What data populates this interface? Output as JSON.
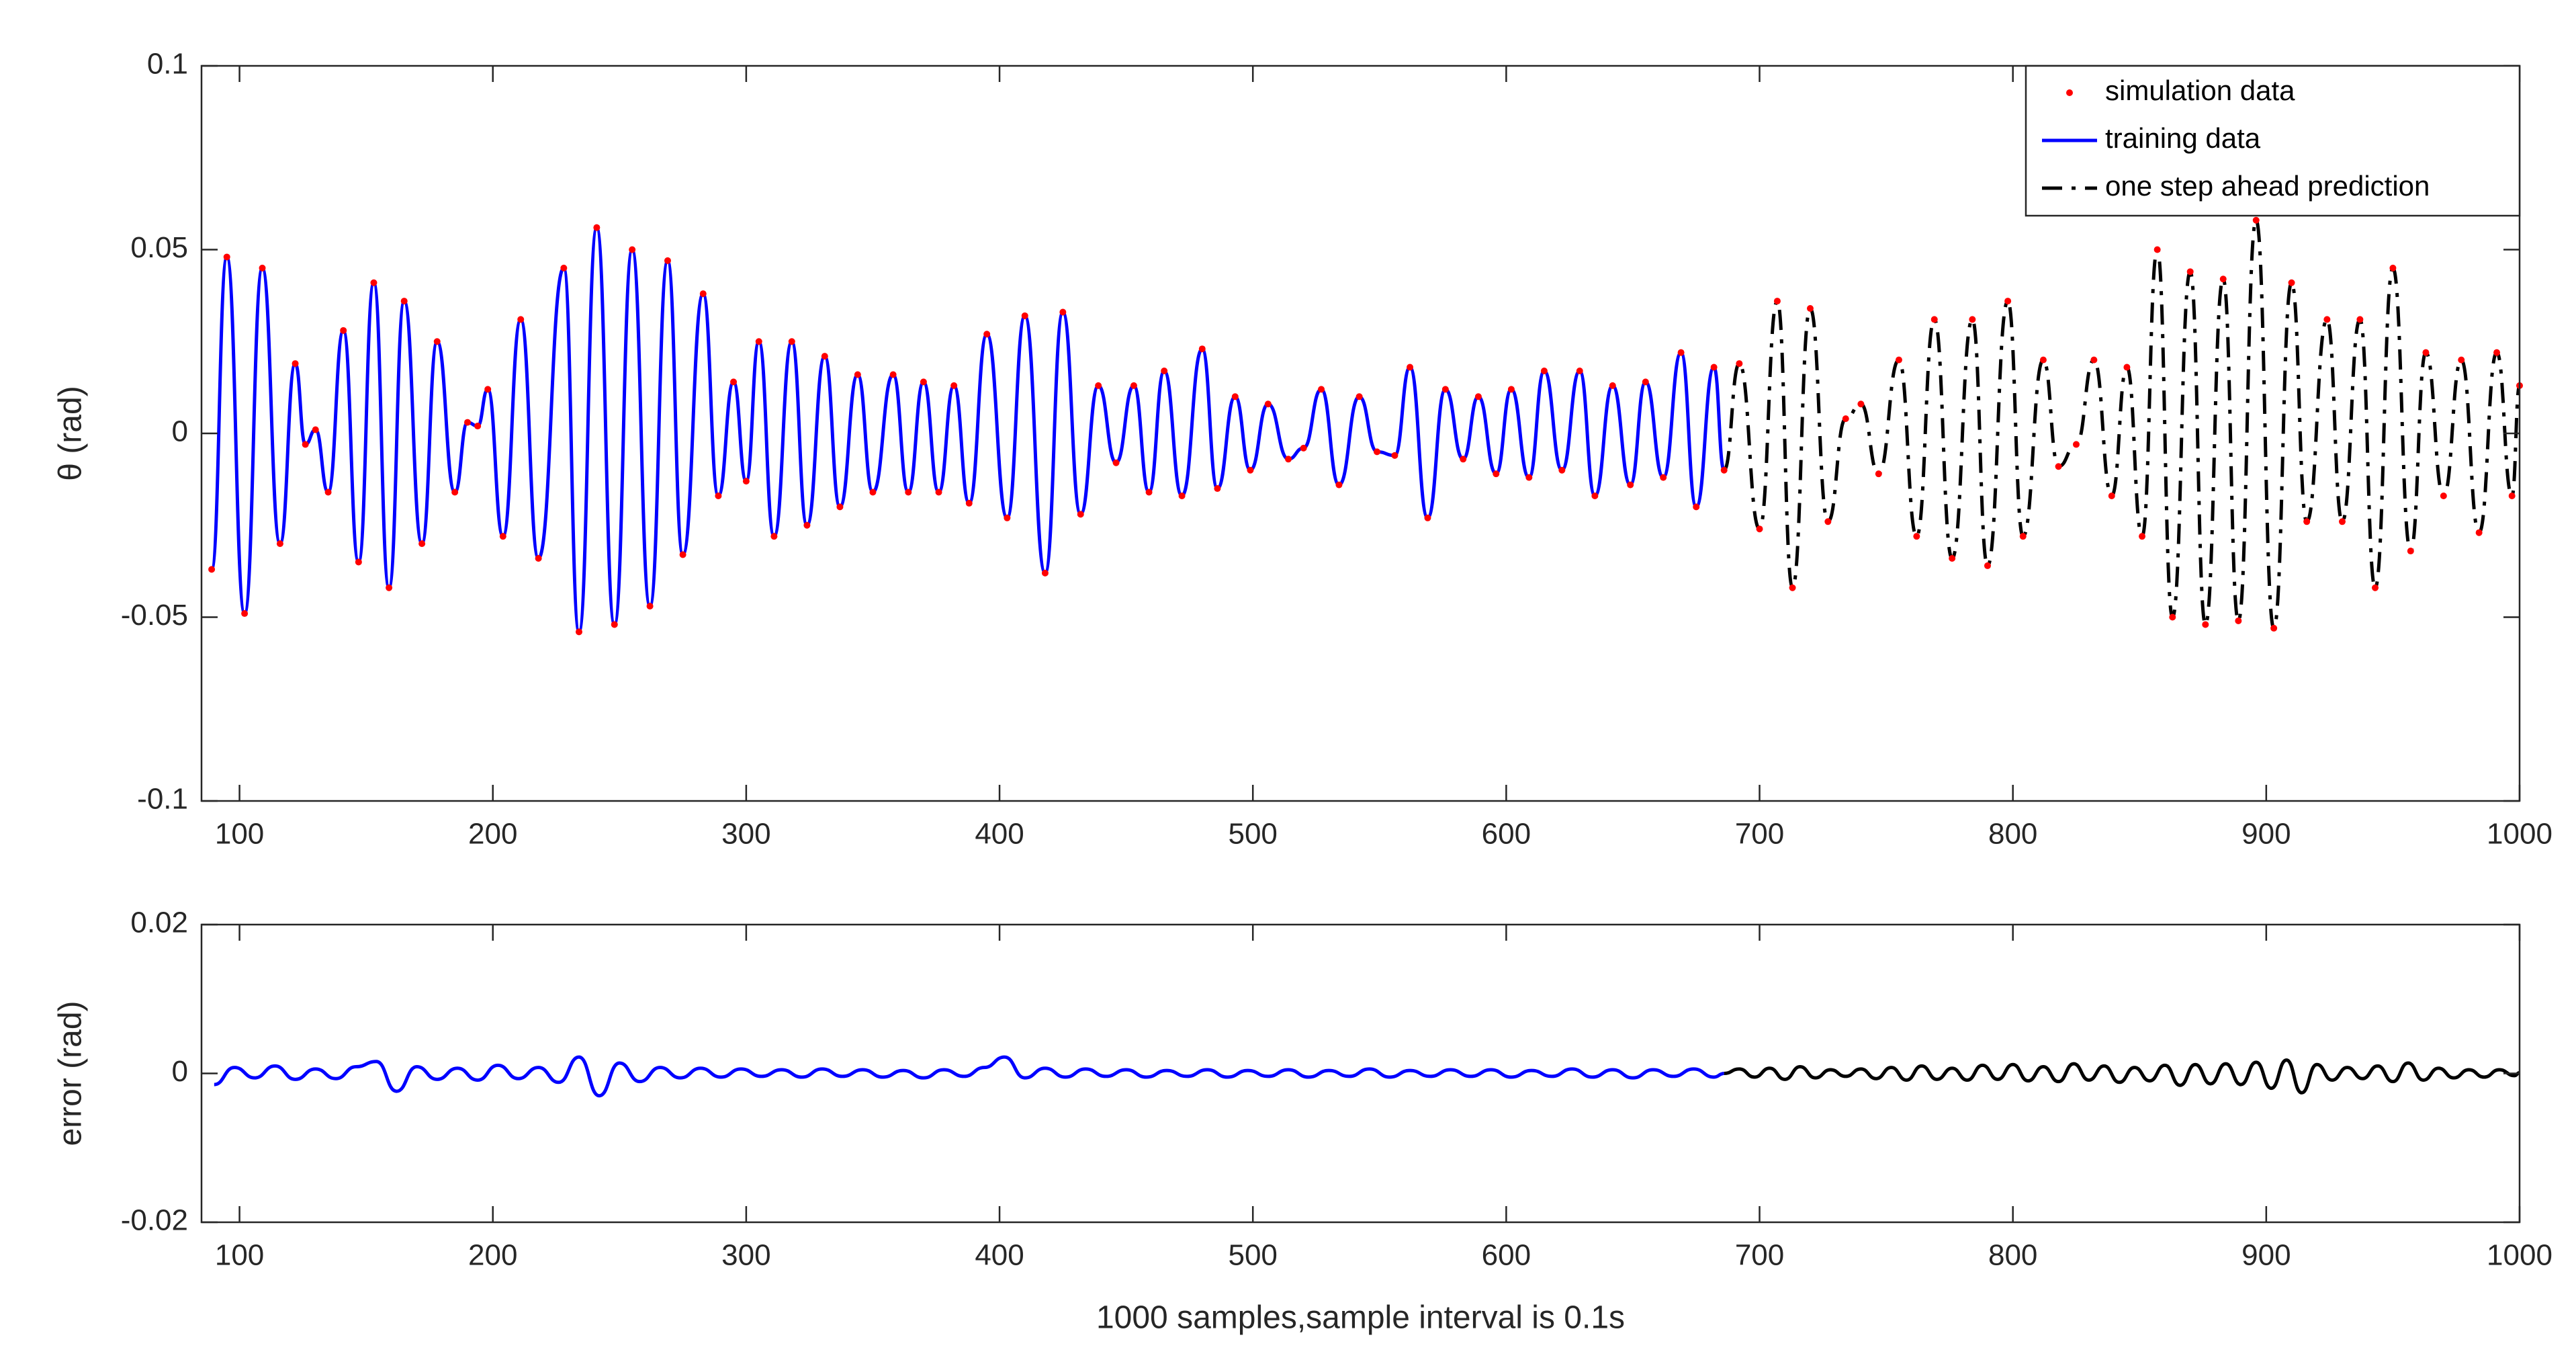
{
  "chart_data": [
    {
      "type": "line",
      "ylabel": "θ (rad)",
      "xlim": [
        85,
        1000
      ],
      "xticks": [
        100,
        200,
        300,
        400,
        500,
        600,
        700,
        800,
        900,
        1000
      ],
      "ylim": [
        -0.1,
        0.1
      ],
      "yticks": [
        -0.1,
        -0.05,
        0,
        0.05,
        0.1
      ],
      "grid": false,
      "legend": "northeast",
      "series": [
        {
          "name": "simulation data",
          "color": "#ff0000",
          "marker": ".",
          "x": [
            89,
            95,
            102,
            109,
            116,
            122,
            126,
            130,
            135,
            141,
            147,
            153,
            159,
            165,
            172,
            178,
            185,
            190,
            194,
            198,
            204,
            211,
            218,
            228,
            234,
            241,
            248,
            255,
            262,
            269,
            275,
            283,
            289,
            295,
            300,
            305,
            311,
            318,
            324,
            331,
            337,
            344,
            350,
            358,
            364,
            370,
            376,
            382,
            388,
            395,
            403,
            410,
            418,
            425,
            432,
            439,
            446,
            453,
            459,
            465,
            472,
            480,
            486,
            493,
            499,
            506,
            514,
            520,
            527,
            534,
            542,
            549,
            556,
            562,
            569,
            576,
            583,
            589,
            596,
            602,
            609,
            615,
            622,
            629,
            635,
            642,
            649,
            655,
            662,
            669,
            675,
            682,
            686,
            692,
            700,
            707,
            713,
            720,
            727,
            734,
            740,
            747,
            755,
            762,
            769,
            776,
            784,
            790,
            798,
            804,
            812,
            818,
            825,
            832,
            839,
            845,
            851,
            857,
            863,
            870,
            876,
            883,
            889,
            896,
            903,
            910,
            916,
            924,
            930,
            937,
            943,
            950,
            957,
            963,
            970,
            977,
            984,
            991,
            997,
            1000
          ],
          "values": [
            -0.037,
            0.048,
            -0.049,
            0.045,
            -0.03,
            0.019,
            -0.003,
            0.001,
            -0.016,
            0.028,
            -0.035,
            0.041,
            -0.042,
            0.036,
            -0.03,
            0.025,
            -0.016,
            0.003,
            0.002,
            0.012,
            -0.028,
            0.031,
            -0.034,
            0.045,
            -0.054,
            0.056,
            -0.052,
            0.05,
            -0.047,
            0.047,
            -0.033,
            0.038,
            -0.017,
            0.014,
            -0.013,
            0.025,
            -0.028,
            0.025,
            -0.025,
            0.021,
            -0.02,
            0.016,
            -0.016,
            0.016,
            -0.016,
            0.014,
            -0.016,
            0.013,
            -0.019,
            0.027,
            -0.023,
            0.032,
            -0.038,
            0.033,
            -0.022,
            0.013,
            -0.008,
            0.013,
            -0.016,
            0.017,
            -0.017,
            0.023,
            -0.015,
            0.01,
            -0.01,
            0.008,
            -0.007,
            -0.004,
            0.012,
            -0.014,
            0.01,
            -0.005,
            -0.006,
            0.018,
            -0.023,
            0.012,
            -0.007,
            0.01,
            -0.011,
            0.012,
            -0.012,
            0.017,
            -0.01,
            0.017,
            -0.017,
            0.013,
            -0.014,
            0.014,
            -0.012,
            0.022,
            -0.02,
            0.018,
            -0.01,
            0.019,
            -0.026,
            0.036,
            -0.042,
            0.034,
            -0.024,
            0.004,
            0.008,
            -0.011,
            0.02,
            -0.028,
            0.031,
            -0.034,
            0.031,
            -0.036,
            0.036,
            -0.028,
            0.02,
            -0.009,
            -0.003,
            0.02,
            -0.017,
            0.018,
            -0.028,
            0.05,
            -0.05,
            0.044,
            -0.052,
            0.042,
            -0.051,
            0.058,
            -0.053,
            0.041,
            -0.024,
            0.031,
            -0.024,
            0.031,
            -0.042,
            0.045,
            -0.032,
            0.022,
            -0.017,
            0.02,
            -0.027,
            0.022,
            -0.017,
            0.013
          ]
        },
        {
          "name": "training data",
          "color": "#0000ff",
          "linestyle": "-",
          "x": [
            89,
            95,
            102,
            109,
            116,
            122,
            126,
            130,
            135,
            141,
            147,
            153,
            159,
            165,
            172,
            178,
            185,
            190,
            194,
            198,
            204,
            211,
            218,
            228,
            234,
            241,
            248,
            255,
            262,
            269,
            275,
            283,
            289,
            295,
            300,
            305,
            311,
            318,
            324,
            331,
            337,
            344,
            350,
            358,
            364,
            370,
            376,
            382,
            388,
            395,
            403,
            410,
            418,
            425,
            432,
            439,
            446,
            453,
            459,
            465,
            472,
            480,
            486,
            493,
            499,
            506,
            514,
            520,
            527,
            534,
            542,
            549,
            556,
            562,
            569,
            576,
            583,
            589,
            596,
            602,
            609,
            615,
            622,
            629,
            635,
            642,
            649,
            655,
            662,
            669,
            675,
            682,
            686
          ],
          "values": [
            -0.037,
            0.048,
            -0.049,
            0.045,
            -0.03,
            0.019,
            -0.003,
            0.001,
            -0.016,
            0.028,
            -0.035,
            0.041,
            -0.042,
            0.036,
            -0.03,
            0.025,
            -0.016,
            0.003,
            0.002,
            0.012,
            -0.028,
            0.031,
            -0.034,
            0.045,
            -0.054,
            0.056,
            -0.052,
            0.05,
            -0.047,
            0.047,
            -0.033,
            0.038,
            -0.017,
            0.014,
            -0.013,
            0.025,
            -0.028,
            0.025,
            -0.025,
            0.021,
            -0.02,
            0.016,
            -0.016,
            0.016,
            -0.016,
            0.014,
            -0.016,
            0.013,
            -0.019,
            0.027,
            -0.023,
            0.032,
            -0.038,
            0.033,
            -0.022,
            0.013,
            -0.008,
            0.013,
            -0.016,
            0.017,
            -0.017,
            0.023,
            -0.015,
            0.01,
            -0.01,
            0.008,
            -0.007,
            -0.004,
            0.012,
            -0.014,
            0.01,
            -0.005,
            -0.006,
            0.018,
            -0.023,
            0.012,
            -0.007,
            0.01,
            -0.011,
            0.012,
            -0.012,
            0.017,
            -0.01,
            0.017,
            -0.017,
            0.013,
            -0.014,
            0.014,
            -0.012,
            0.022,
            -0.02,
            0.018,
            -0.01
          ]
        },
        {
          "name": "one step ahead prediction",
          "color": "#000000",
          "linestyle": "-.",
          "x": [
            686,
            692,
            700,
            707,
            713,
            720,
            727,
            734,
            740,
            747,
            755,
            762,
            769,
            776,
            784,
            790,
            798,
            804,
            812,
            818,
            825,
            832,
            839,
            845,
            851,
            857,
            863,
            870,
            876,
            883,
            889,
            896,
            903,
            910,
            916,
            924,
            930,
            937,
            943,
            950,
            957,
            963,
            970,
            977,
            984,
            991,
            997,
            1000
          ],
          "values": [
            -0.01,
            0.019,
            -0.026,
            0.036,
            -0.042,
            0.034,
            -0.024,
            0.004,
            0.008,
            -0.011,
            0.02,
            -0.028,
            0.031,
            -0.034,
            0.031,
            -0.036,
            0.036,
            -0.028,
            0.02,
            -0.009,
            -0.003,
            0.02,
            -0.017,
            0.018,
            -0.028,
            0.05,
            -0.05,
            0.044,
            -0.052,
            0.042,
            -0.051,
            0.058,
            -0.053,
            0.041,
            -0.024,
            0.031,
            -0.024,
            0.031,
            -0.042,
            0.045,
            -0.032,
            0.022,
            -0.017,
            0.02,
            -0.027,
            0.022,
            -0.017,
            0.013
          ]
        }
      ]
    },
    {
      "type": "line",
      "ylabel": "error (rad)",
      "xlabel": "1000 samples,sample interval is 0.1s",
      "xlim": [
        85,
        1000
      ],
      "xticks": [
        100,
        200,
        300,
        400,
        500,
        600,
        700,
        800,
        900,
        1000
      ],
      "ylim": [
        -0.02,
        0.02
      ],
      "yticks": [
        -0.02,
        0,
        0.02
      ],
      "grid": false,
      "series": [
        {
          "color": "#0000ff",
          "linestyle": "-",
          "x": [
            90,
            98,
            106,
            114,
            122,
            130,
            138,
            146,
            154,
            162,
            170,
            178,
            186,
            194,
            202,
            210,
            218,
            226,
            234,
            242,
            250,
            258,
            266,
            274,
            282,
            290,
            298,
            306,
            314,
            322,
            330,
            338,
            346,
            354,
            362,
            370,
            378,
            386,
            394,
            402,
            410,
            418,
            426,
            434,
            442,
            450,
            458,
            466,
            474,
            482,
            490,
            498,
            506,
            514,
            522,
            530,
            538,
            546,
            554,
            562,
            570,
            578,
            586,
            594,
            602,
            610,
            618,
            626,
            634,
            642,
            650,
            658,
            666,
            674,
            682,
            686
          ],
          "values": [
            -0.0015,
            0.0008,
            -0.0006,
            0.001,
            -0.0008,
            0.0006,
            -0.0007,
            0.0009,
            0.0016,
            -0.0024,
            0.0009,
            -0.0008,
            0.0007,
            -0.0009,
            0.0011,
            -0.0007,
            0.0008,
            -0.0012,
            0.0022,
            -0.003,
            0.0014,
            -0.0011,
            0.0008,
            -0.0006,
            0.0007,
            -0.0005,
            0.0006,
            -0.0004,
            0.0005,
            -0.0005,
            0.0006,
            -0.0004,
            0.0005,
            -0.0005,
            0.0004,
            -0.0006,
            0.0005,
            -0.0004,
            0.0008,
            0.0022,
            -0.0006,
            0.0007,
            -0.0005,
            0.0006,
            -0.0004,
            0.0005,
            -0.0005,
            0.0004,
            -0.0004,
            0.0005,
            -0.0005,
            0.0004,
            -0.0004,
            0.0005,
            -0.0005,
            0.0004,
            -0.0004,
            0.0006,
            -0.0005,
            0.0004,
            -0.0004,
            0.0005,
            -0.0004,
            0.0005,
            -0.0005,
            0.0004,
            -0.0004,
            0.0006,
            -0.0005,
            0.0005,
            -0.0006,
            0.0005,
            -0.0004,
            0.0006,
            -0.0005,
            0
          ]
        },
        {
          "color": "#000000",
          "linestyle": "-",
          "x": [
            686,
            692,
            698,
            704,
            710,
            716,
            722,
            728,
            734,
            740,
            746,
            752,
            758,
            764,
            770,
            776,
            782,
            788,
            794,
            800,
            806,
            812,
            818,
            824,
            830,
            836,
            842,
            848,
            854,
            860,
            866,
            872,
            878,
            884,
            890,
            896,
            902,
            908,
            914,
            920,
            926,
            932,
            938,
            944,
            950,
            956,
            962,
            968,
            974,
            980,
            986,
            992,
            998,
            1000
          ],
          "values": [
            0,
            0.0006,
            -0.0005,
            0.0007,
            -0.0008,
            0.0009,
            -0.0006,
            0.0005,
            -0.0004,
            0.0006,
            -0.0007,
            0.0008,
            -0.0009,
            0.001,
            -0.0008,
            0.0007,
            -0.0009,
            0.0011,
            -0.0008,
            0.0012,
            -0.001,
            0.0009,
            -0.0011,
            0.0013,
            -0.0009,
            0.001,
            -0.0012,
            0.0008,
            -0.001,
            0.0011,
            -0.0016,
            0.0012,
            -0.0014,
            0.0013,
            -0.0015,
            0.0015,
            -0.002,
            0.0018,
            -0.0026,
            0.0012,
            -0.0009,
            0.0008,
            -0.0007,
            0.001,
            -0.0011,
            0.0014,
            -0.0009,
            0.0007,
            -0.0006,
            0.0005,
            -0.0005,
            0.0005,
            -0.0003,
            0.0001
          ]
        }
      ]
    }
  ]
}
